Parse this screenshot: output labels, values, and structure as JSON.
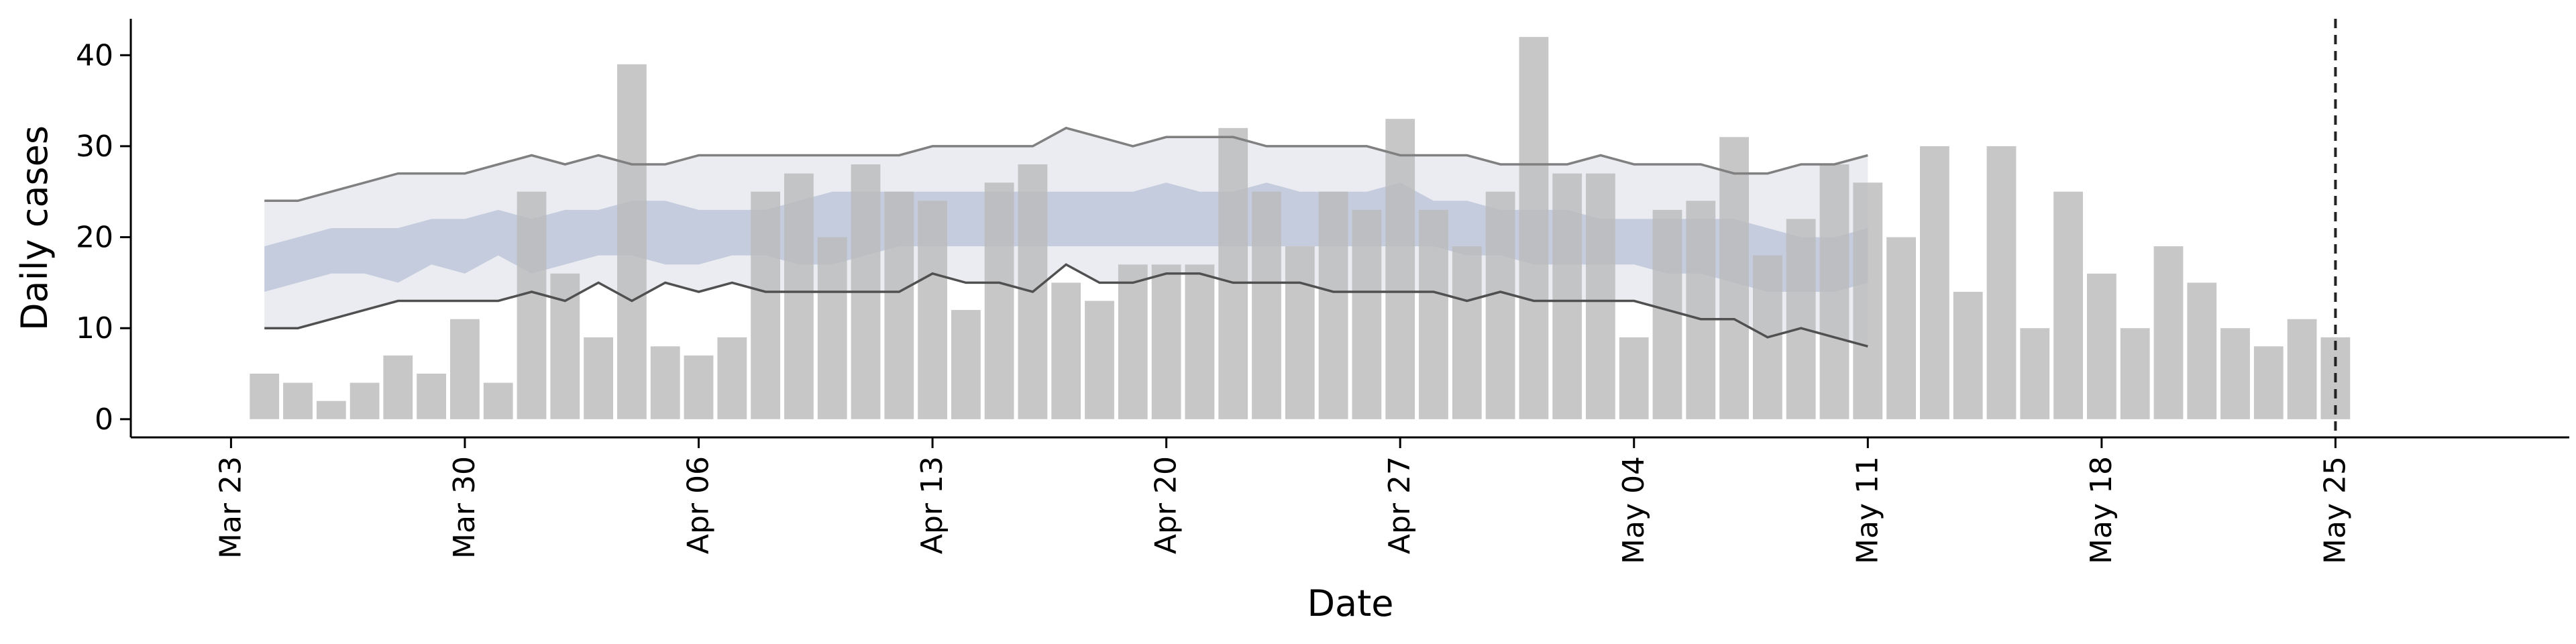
{
  "chart_data": {
    "type": "bar",
    "title": "",
    "xlabel": "Date",
    "ylabel": "Daily cases",
    "x_ticks": [
      "Mar 23",
      "Mar 30",
      "Apr 06",
      "Apr 13",
      "Apr 20",
      "Apr 27",
      "May 04",
      "May 11",
      "May 18",
      "May 25"
    ],
    "x_tick_dates": [
      "2020-03-23",
      "2020-03-30",
      "2020-04-06",
      "2020-04-13",
      "2020-04-20",
      "2020-04-27",
      "2020-05-04",
      "2020-05-11",
      "2020-05-18",
      "2020-05-25"
    ],
    "y_ticks": [
      0,
      10,
      20,
      30,
      40
    ],
    "xlim": [
      "2020-03-20",
      "2020-06-01"
    ],
    "ylim": [
      -2,
      44
    ],
    "grid": false,
    "bars": {
      "name": "Daily cases",
      "color": "#bbbbbb",
      "x": [
        "2020-03-24",
        "2020-03-25",
        "2020-03-26",
        "2020-03-27",
        "2020-03-28",
        "2020-03-29",
        "2020-03-30",
        "2020-03-31",
        "2020-04-01",
        "2020-04-02",
        "2020-04-03",
        "2020-04-04",
        "2020-04-05",
        "2020-04-06",
        "2020-04-07",
        "2020-04-08",
        "2020-04-09",
        "2020-04-10",
        "2020-04-11",
        "2020-04-12",
        "2020-04-13",
        "2020-04-14",
        "2020-04-15",
        "2020-04-16",
        "2020-04-17",
        "2020-04-18",
        "2020-04-19",
        "2020-04-20",
        "2020-04-21",
        "2020-04-22",
        "2020-04-23",
        "2020-04-24",
        "2020-04-25",
        "2020-04-26",
        "2020-04-27",
        "2020-04-28",
        "2020-04-29",
        "2020-04-30",
        "2020-05-01",
        "2020-05-02",
        "2020-05-03",
        "2020-05-04",
        "2020-05-05",
        "2020-05-06",
        "2020-05-07",
        "2020-05-08",
        "2020-05-09",
        "2020-05-10",
        "2020-05-11",
        "2020-05-12",
        "2020-05-13",
        "2020-05-14",
        "2020-05-15",
        "2020-05-16",
        "2020-05-17",
        "2020-05-18",
        "2020-05-19",
        "2020-05-20",
        "2020-05-21",
        "2020-05-22",
        "2020-05-23",
        "2020-05-24",
        "2020-05-25"
      ],
      "values": [
        5,
        4,
        2,
        4,
        7,
        5,
        11,
        4,
        25,
        16,
        9,
        39,
        8,
        7,
        9,
        25,
        27,
        20,
        28,
        25,
        24,
        12,
        26,
        28,
        15,
        13,
        17,
        17,
        17,
        32,
        25,
        19,
        25,
        23,
        33,
        23,
        19,
        25,
        42,
        27,
        27,
        9,
        23,
        24,
        31,
        18,
        22,
        28,
        26,
        20,
        30,
        14,
        30,
        10,
        25,
        16,
        10,
        19,
        15,
        10,
        8,
        11,
        9
      ]
    },
    "forecast": {
      "x": [
        "2020-03-24",
        "2020-03-25",
        "2020-03-26",
        "2020-03-27",
        "2020-03-28",
        "2020-03-29",
        "2020-03-30",
        "2020-03-31",
        "2020-04-01",
        "2020-04-02",
        "2020-04-03",
        "2020-04-04",
        "2020-04-05",
        "2020-04-06",
        "2020-04-07",
        "2020-04-08",
        "2020-04-09",
        "2020-04-10",
        "2020-04-11",
        "2020-04-12",
        "2020-04-13",
        "2020-04-14",
        "2020-04-15",
        "2020-04-16",
        "2020-04-17",
        "2020-04-18",
        "2020-04-19",
        "2020-04-20",
        "2020-04-21",
        "2020-04-22",
        "2020-04-23",
        "2020-04-24",
        "2020-04-25",
        "2020-04-26",
        "2020-04-27",
        "2020-04-28",
        "2020-04-29",
        "2020-04-30",
        "2020-05-01",
        "2020-05-02",
        "2020-05-03",
        "2020-05-04",
        "2020-05-05",
        "2020-05-06",
        "2020-05-07",
        "2020-05-08",
        "2020-05-09",
        "2020-05-10",
        "2020-05-11"
      ],
      "outer_band": {
        "color": "#e8eaf0",
        "upper": [
          24,
          24,
          25,
          26,
          27,
          27,
          27,
          28,
          29,
          28,
          29,
          28,
          28,
          29,
          29,
          29,
          29,
          29,
          29,
          29,
          30,
          30,
          30,
          30,
          32,
          31,
          30,
          31,
          31,
          31,
          30,
          30,
          30,
          30,
          29,
          29,
          29,
          28,
          28,
          28,
          29,
          28,
          28,
          28,
          27,
          27,
          28,
          28,
          29
        ],
        "lower": [
          10,
          10,
          11,
          12,
          13,
          13,
          13,
          13,
          14,
          13,
          15,
          13,
          15,
          14,
          15,
          14,
          14,
          14,
          14,
          14,
          16,
          15,
          15,
          14,
          17,
          15,
          15,
          16,
          16,
          15,
          15,
          15,
          14,
          14,
          14,
          14,
          13,
          14,
          13,
          13,
          13,
          13,
          12,
          11,
          11,
          9,
          10,
          9,
          8
        ]
      },
      "inner_band": {
        "color": "#c3cadb",
        "upper": [
          19,
          20,
          21,
          21,
          21,
          22,
          22,
          23,
          22,
          23,
          23,
          24,
          24,
          23,
          23,
          23,
          24,
          25,
          25,
          25,
          25,
          25,
          25,
          25,
          25,
          25,
          25,
          26,
          25,
          25,
          26,
          25,
          25,
          25,
          26,
          24,
          24,
          23,
          23,
          23,
          22,
          22,
          22,
          22,
          22,
          21,
          20,
          20,
          21
        ],
        "lower": [
          14,
          15,
          16,
          16,
          15,
          17,
          16,
          18,
          16,
          17,
          18,
          18,
          17,
          17,
          18,
          18,
          17,
          17,
          18,
          19,
          19,
          19,
          19,
          19,
          19,
          19,
          19,
          19,
          19,
          19,
          19,
          19,
          19,
          19,
          19,
          19,
          18,
          18,
          17,
          17,
          17,
          17,
          16,
          16,
          15,
          14,
          14,
          14,
          15
        ]
      },
      "upper_line": {
        "color": "#808080",
        "values": [
          24,
          24,
          25,
          26,
          27,
          27,
          27,
          28,
          29,
          28,
          29,
          28,
          28,
          29,
          29,
          29,
          29,
          29,
          29,
          29,
          30,
          30,
          30,
          30,
          32,
          31,
          30,
          31,
          31,
          31,
          30,
          30,
          30,
          30,
          29,
          29,
          29,
          28,
          28,
          28,
          29,
          28,
          28,
          28,
          27,
          27,
          28,
          28,
          29
        ]
      },
      "lower_line": {
        "color": "#505050",
        "values": [
          10,
          10,
          11,
          12,
          13,
          13,
          13,
          13,
          14,
          13,
          15,
          13,
          15,
          14,
          15,
          14,
          14,
          14,
          14,
          14,
          16,
          15,
          15,
          14,
          17,
          15,
          15,
          16,
          16,
          15,
          15,
          15,
          14,
          14,
          14,
          14,
          13,
          14,
          13,
          13,
          13,
          13,
          12,
          11,
          11,
          9,
          10,
          9,
          8
        ]
      }
    },
    "vertical_line": {
      "x": "2020-05-25",
      "style": "dashed",
      "color": "#222222"
    }
  }
}
